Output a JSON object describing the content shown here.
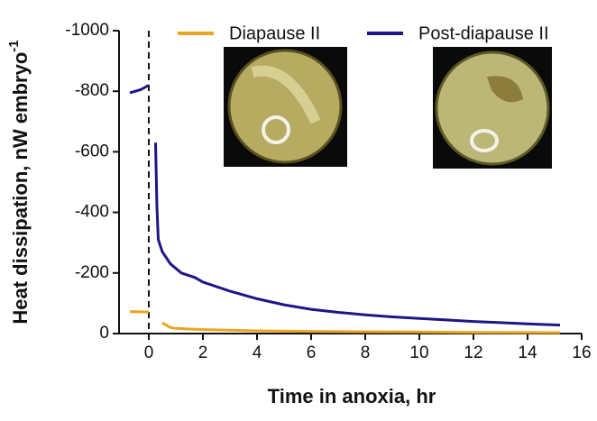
{
  "chart_data": {
    "type": "line",
    "xlabel": "Time in anoxia, hr",
    "ylabel": "Heat dissipation, nW embryo",
    "ylabel_superscript": "-1",
    "xlim": [
      -1.1,
      16
    ],
    "xticks": [
      0,
      2,
      4,
      6,
      8,
      10,
      12,
      14,
      16
    ],
    "ylim": [
      0,
      -1000
    ],
    "yticks": [
      -1000,
      -800,
      -600,
      -400,
      -200,
      0
    ],
    "vline": 0,
    "legend": "top",
    "series": [
      {
        "name": "Diapause II",
        "color": "#e9a521",
        "x": [
          -0.7,
          -0.4,
          0,
          0.2,
          0.5,
          0.8,
          1,
          2,
          4,
          6,
          8,
          10,
          12,
          15.2
        ],
        "values": [
          -72,
          -72,
          -71,
          null,
          -35,
          -20,
          -17,
          -13,
          -9,
          -7,
          -6,
          -5,
          -4,
          -3
        ]
      },
      {
        "name": "Post-diapause II",
        "color": "#1e1587",
        "x": [
          -0.7,
          -0.3,
          0,
          0.1,
          0.25,
          0.3,
          0.35,
          0.5,
          0.8,
          1.2,
          1.7,
          2,
          3,
          4,
          5,
          6,
          7,
          8,
          9,
          10,
          11,
          12,
          13,
          14,
          15.2
        ],
        "values": [
          -795,
          -805,
          -820,
          null,
          -630,
          -420,
          -310,
          -270,
          -230,
          -200,
          -185,
          -170,
          -140,
          -115,
          -95,
          -80,
          -70,
          -62,
          -55,
          -50,
          -45,
          -40,
          -36,
          -32,
          -28
        ]
      }
    ]
  }
}
